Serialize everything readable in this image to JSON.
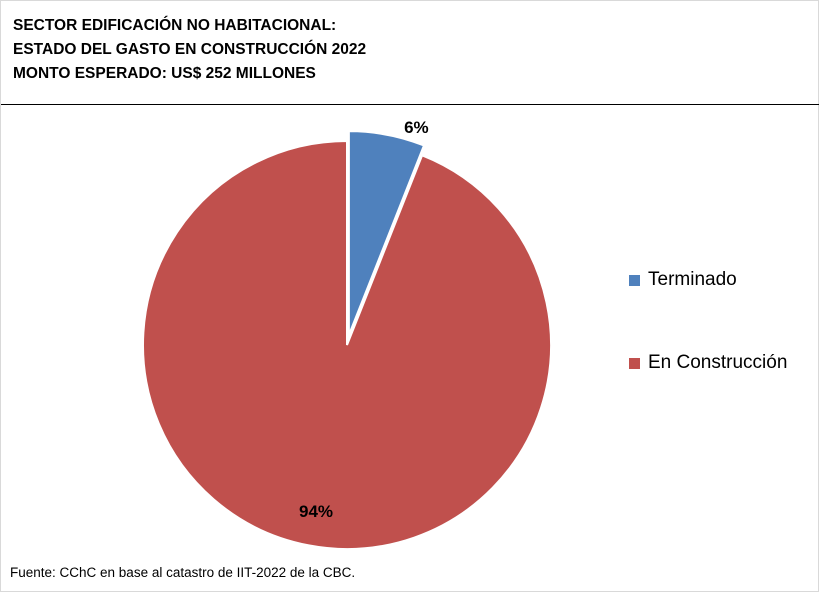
{
  "title_lines": [
    "SECTOR EDIFICACIÓN NO HABITACIONAL:",
    "ESTADO DEL GASTO EN CONSTRUCCIÓN 2022",
    "MONTO ESPERADO: US$ 252 MILLONES"
  ],
  "source": "Fuente: CChC en base al catastro de IIT-2022 de la CBC.",
  "colors": {
    "terminado": "#4f81bd",
    "en_construccion": "#c0504d"
  },
  "chart_data": {
    "type": "pie",
    "title": "SECTOR EDIFICACIÓN NO HABITACIONAL: ESTADO DEL GASTO EN CONSTRUCCIÓN 2022 MONTO ESPERADO: US$ 252 MILLONES",
    "slices": [
      {
        "label": "Terminado",
        "value": 6,
        "data_label": "6%",
        "color": "#4f81bd",
        "exploded": true
      },
      {
        "label": "En Construcción",
        "value": 94,
        "data_label": "94%",
        "color": "#c0504d",
        "exploded": false
      }
    ],
    "legend_position": "right"
  }
}
